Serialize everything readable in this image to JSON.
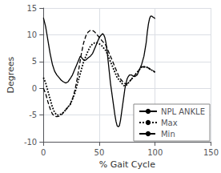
{
  "chart_data": {
    "type": "line",
    "xlabel": "% Gait Cycle",
    "ylabel": "Degrees",
    "xlim": [
      0,
      150
    ],
    "ylim": [
      -10,
      15
    ],
    "xticks": [
      0,
      50,
      100,
      150
    ],
    "yticks": [
      -10,
      -5,
      0,
      5,
      10,
      15
    ],
    "grid": true,
    "legend": "lower right",
    "series": [
      {
        "name": "NPL ANKLE",
        "color": "#000000",
        "line_style": "solid",
        "x": [
          0,
          2,
          4,
          6,
          8,
          10,
          12,
          14,
          16,
          18,
          20,
          22,
          24,
          26,
          28,
          30,
          32,
          33,
          34,
          35,
          36,
          37,
          38,
          39,
          40,
          42,
          44,
          46,
          48,
          50,
          52,
          53,
          54,
          55,
          56,
          57,
          58,
          59,
          60,
          61,
          62,
          63,
          64,
          65,
          66,
          67,
          68,
          69,
          70,
          71,
          72,
          73,
          74,
          75,
          76,
          77,
          78,
          79,
          80,
          82,
          84,
          86,
          88,
          90,
          92,
          93,
          94,
          95,
          96,
          97,
          98,
          99,
          100
        ],
        "values": [
          13.2,
          11.5,
          9.0,
          6.5,
          4.5,
          3.2,
          2.5,
          2.0,
          1.5,
          1.2,
          1.0,
          1.2,
          1.8,
          2.5,
          3.5,
          4.5,
          5.5,
          6.0,
          5.8,
          5.5,
          5.3,
          5.2,
          5.3,
          5.5,
          5.7,
          6.0,
          6.5,
          7.5,
          8.5,
          9.5,
          10.0,
          10.2,
          10.0,
          9.5,
          8.5,
          7.0,
          5.0,
          3.0,
          1.0,
          -0.5,
          -2.0,
          -3.5,
          -5.0,
          -6.2,
          -7.0,
          -7.2,
          -7.0,
          -6.0,
          -4.5,
          -3.0,
          -1.5,
          0.0,
          1.0,
          1.8,
          2.2,
          2.5,
          2.5,
          2.5,
          2.3,
          2.2,
          2.5,
          3.5,
          4.5,
          6.0,
          8.5,
          10.5,
          12.0,
          13.0,
          13.5,
          13.5,
          13.3,
          13.2,
          13.0
        ]
      },
      {
        "name": "Max",
        "color": "#000000",
        "line_style": "dotted",
        "x": [
          0,
          2,
          4,
          6,
          8,
          10,
          12,
          14,
          16,
          18,
          20,
          22,
          24,
          26,
          28,
          30,
          32,
          34,
          36,
          38,
          40,
          42,
          44,
          46,
          48,
          50,
          52,
          54,
          56,
          58,
          60,
          62,
          64,
          66,
          68,
          70,
          72,
          74,
          76,
          78,
          80,
          82,
          84,
          86,
          88,
          90,
          92,
          94,
          96,
          98,
          100
        ],
        "values": [
          2.0,
          1.0,
          -0.5,
          -2.0,
          -3.5,
          -4.5,
          -5.0,
          -5.0,
          -4.8,
          -4.5,
          -4.0,
          -3.5,
          -3.0,
          -2.0,
          -1.0,
          0.5,
          2.0,
          3.5,
          5.0,
          6.0,
          7.0,
          7.8,
          8.3,
          8.5,
          8.5,
          8.3,
          8.0,
          7.5,
          7.0,
          6.0,
          5.0,
          4.0,
          3.0,
          2.0,
          1.5,
          1.0,
          0.5,
          0.5,
          1.0,
          1.5,
          2.0,
          2.5,
          3.0,
          3.5,
          4.0,
          4.0,
          4.0,
          3.8,
          3.5,
          3.3,
          3.0
        ]
      },
      {
        "name": "Min",
        "color": "#000000",
        "line_style": "dashed",
        "x": [
          0,
          2,
          4,
          6,
          8,
          10,
          12,
          14,
          16,
          18,
          20,
          22,
          24,
          26,
          28,
          30,
          32,
          34,
          36,
          38,
          40,
          42,
          44,
          46,
          48,
          50,
          52,
          54,
          56,
          58,
          60,
          62,
          64,
          66,
          68,
          70,
          72,
          74,
          76,
          78,
          80,
          82,
          84,
          86,
          88,
          90,
          92,
          94,
          96,
          98,
          100
        ],
        "values": [
          0.0,
          -1.0,
          -2.5,
          -3.8,
          -4.8,
          -5.2,
          -5.3,
          -5.2,
          -5.0,
          -4.5,
          -4.0,
          -3.5,
          -3.0,
          -2.0,
          -0.5,
          1.5,
          4.0,
          6.5,
          8.5,
          9.8,
          10.5,
          10.8,
          10.8,
          10.5,
          10.0,
          9.5,
          9.0,
          8.5,
          8.0,
          7.0,
          6.0,
          5.0,
          4.0,
          3.0,
          2.0,
          1.5,
          1.0,
          0.8,
          1.0,
          1.5,
          2.0,
          2.5,
          3.0,
          3.5,
          4.0,
          4.0,
          4.0,
          3.8,
          3.5,
          3.3,
          3.0
        ]
      }
    ]
  }
}
